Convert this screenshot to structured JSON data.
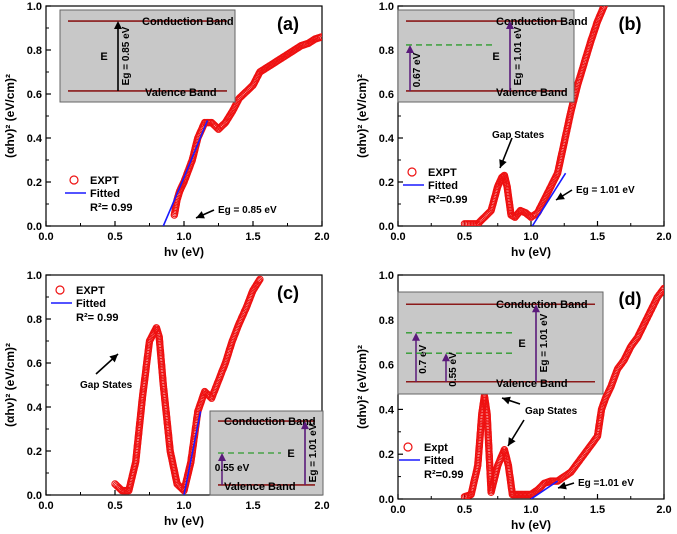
{
  "chart_data": [
    {
      "type": "scatter",
      "panel_label": "(a)",
      "xlabel": "hν (eV)",
      "ylabel": "(αhν)² (eV/cm)²",
      "xlim": [
        0.0,
        2.0
      ],
      "ylim": [
        0.0,
        1.0
      ],
      "xticks": [
        "0.0",
        "0.5",
        "1.0",
        "1.5",
        "2.0"
      ],
      "yticks": [
        "0.0",
        "0.2",
        "0.4",
        "0.6",
        "0.8",
        "1.0"
      ],
      "series": [
        {
          "name": "EXPT",
          "style": "open-circle",
          "color": "#ee1111",
          "x": [
            0.93,
            0.95,
            0.97,
            1.0,
            1.03,
            1.06,
            1.1,
            1.15,
            1.2,
            1.25,
            1.3,
            1.35,
            1.4,
            1.45,
            1.5,
            1.55,
            1.6,
            1.65,
            1.7,
            1.75,
            1.8,
            1.85,
            1.9,
            1.95,
            2.0
          ],
          "y": [
            0.05,
            0.12,
            0.16,
            0.2,
            0.25,
            0.3,
            0.4,
            0.47,
            0.47,
            0.44,
            0.47,
            0.52,
            0.58,
            0.61,
            0.64,
            0.7,
            0.72,
            0.74,
            0.76,
            0.78,
            0.8,
            0.82,
            0.83,
            0.85,
            0.86
          ]
        },
        {
          "name": "Fitted",
          "style": "line",
          "color": "#1a1aff",
          "x": [
            0.85,
            1.0,
            1.17
          ],
          "y": [
            0.0,
            0.22,
            0.48
          ]
        }
      ],
      "legend": {
        "entries": [
          "EXPT",
          "Fitted"
        ],
        "r2": "R²= 0.99",
        "placement": "bottom-left"
      },
      "annotations": {
        "eg": "Eg = 0.85 eV"
      },
      "inset": {
        "conduction": "Conduction Band",
        "valence": "Valence Band",
        "e_label": "E",
        "eg_label": "Eg = 0.85 eV"
      }
    },
    {
      "type": "scatter",
      "panel_label": "(b)",
      "xlabel": "hν (eV)",
      "ylabel": "(αhν)² (eV/cm)²",
      "xlim": [
        0.0,
        2.0
      ],
      "ylim": [
        0.0,
        1.0
      ],
      "xticks": [
        "0.0",
        "0.5",
        "1.0",
        "1.5",
        "2.0"
      ],
      "yticks": [
        "0.0",
        "0.2",
        "0.4",
        "0.6",
        "0.8",
        "1.0"
      ],
      "series": [
        {
          "name": "EXPT",
          "style": "open-circle",
          "color": "#ee1111",
          "x": [
            0.5,
            0.6,
            0.7,
            0.75,
            0.78,
            0.8,
            0.82,
            0.85,
            0.88,
            0.92,
            0.96,
            1.0,
            1.05,
            1.1,
            1.15,
            1.2,
            1.25,
            1.3,
            1.35,
            1.4,
            1.45,
            1.5,
            1.55
          ],
          "y": [
            0.01,
            0.01,
            0.07,
            0.18,
            0.22,
            0.23,
            0.18,
            0.05,
            0.04,
            0.07,
            0.06,
            0.04,
            0.06,
            0.12,
            0.18,
            0.24,
            0.38,
            0.52,
            0.64,
            0.74,
            0.84,
            0.93,
            1.0
          ]
        },
        {
          "name": "Fitted",
          "style": "line",
          "color": "#1a1aff",
          "x": [
            1.01,
            1.26
          ],
          "y": [
            0.0,
            0.24
          ]
        }
      ],
      "legend": {
        "entries": [
          "EXPT",
          "Fitted"
        ],
        "r2": "R²=0.99",
        "placement": "bottom-left"
      },
      "annotations": {
        "gap": "Gap States",
        "eg": "Eg = 1.01 eV"
      },
      "inset": {
        "conduction": "Conduction Band",
        "valence": "Valence Band",
        "e_label": "E",
        "eg_label": "Eg = 1.01 eV",
        "level1": "0.67 eV"
      }
    },
    {
      "type": "scatter",
      "panel_label": "(c)",
      "xlabel": "hν (eV)",
      "ylabel": "(αhν)² (eV/cm)²",
      "xlim": [
        0.0,
        2.0
      ],
      "ylim": [
        0.0,
        1.0
      ],
      "xticks": [
        "0.0",
        "0.5",
        "1.0",
        "1.5",
        "2.0"
      ],
      "yticks": [
        "0.0",
        "0.2",
        "0.4",
        "0.6",
        "0.8",
        "1.0"
      ],
      "series": [
        {
          "name": "EXPT",
          "style": "open-circle",
          "color": "#ee1111",
          "x": [
            0.5,
            0.55,
            0.6,
            0.65,
            0.7,
            0.75,
            0.8,
            0.82,
            0.85,
            0.9,
            0.95,
            1.0,
            1.05,
            1.1,
            1.15,
            1.2,
            1.25,
            1.3,
            1.35,
            1.4,
            1.45,
            1.5,
            1.55
          ],
          "y": [
            0.05,
            0.02,
            0.02,
            0.15,
            0.45,
            0.7,
            0.76,
            0.72,
            0.5,
            0.2,
            0.05,
            0.02,
            0.15,
            0.38,
            0.47,
            0.44,
            0.52,
            0.6,
            0.7,
            0.78,
            0.85,
            0.93,
            0.98
          ]
        },
        {
          "name": "Fitted",
          "style": "line",
          "color": "#1a1aff",
          "x": [
            1.0,
            1.12
          ],
          "y": [
            0.0,
            0.38
          ]
        }
      ],
      "legend": {
        "entries": [
          "EXPT",
          "Fitted"
        ],
        "r2": "R²= 0.99",
        "placement": "top-left"
      },
      "annotations": {
        "gap": "Gap States"
      },
      "inset": {
        "conduction": "Conduction Band",
        "valence": "Valence Band",
        "e_label": "E",
        "eg_label": "Eg = 1.01 eV",
        "level1": "0.55 eV"
      }
    },
    {
      "type": "scatter",
      "panel_label": "(d)",
      "xlabel": "hν (eV)",
      "ylabel": "(αhν)² (eV/cm)²",
      "xlim": [
        0.0,
        2.0
      ],
      "ylim": [
        0.0,
        1.0
      ],
      "xticks": [
        "0.0",
        "0.5",
        "1.0",
        "1.5",
        "2.0"
      ],
      "yticks": [
        "0.0",
        "0.2",
        "0.4",
        "0.6",
        "0.8",
        "1.0"
      ],
      "series": [
        {
          "name": "Expt",
          "style": "open-circle",
          "color": "#ee1111",
          "x": [
            0.5,
            0.55,
            0.6,
            0.63,
            0.65,
            0.67,
            0.7,
            0.75,
            0.8,
            0.83,
            0.86,
            0.9,
            0.95,
            1.0,
            1.05,
            1.1,
            1.15,
            1.2,
            1.3,
            1.4,
            1.5,
            1.53,
            1.56,
            1.6,
            1.65,
            1.7,
            1.75,
            1.8,
            1.85,
            1.9,
            1.95,
            2.0
          ],
          "y": [
            0.01,
            0.02,
            0.15,
            0.38,
            0.46,
            0.38,
            0.03,
            0.15,
            0.22,
            0.15,
            0.02,
            0.02,
            0.02,
            0.02,
            0.04,
            0.07,
            0.08,
            0.08,
            0.12,
            0.2,
            0.28,
            0.4,
            0.45,
            0.5,
            0.58,
            0.62,
            0.68,
            0.72,
            0.78,
            0.84,
            0.9,
            0.94
          ]
        },
        {
          "name": "Fitted",
          "style": "line",
          "color": "#1a1aff",
          "x": [
            1.0,
            1.2
          ],
          "y": [
            0.0,
            0.08
          ]
        }
      ],
      "legend": {
        "entries": [
          "Expt",
          "Fitted"
        ],
        "r2": "R²=0.99",
        "placement": "bottom-left"
      },
      "annotations": {
        "gap": "Gap States",
        "eg": "Eg =1.01 eV"
      },
      "inset": {
        "conduction": "Conduction Band",
        "valence": "Valence Band",
        "e_label": "E",
        "eg_label": "Eg = 1.01 eV",
        "level1": "0.7 eV",
        "level2": "0.55 eV"
      }
    }
  ],
  "colors": {
    "points": "#ee1111",
    "fit": "#1a1aff",
    "inset_bg": "#c8c8c8",
    "band_line": "#8b1a1a",
    "gap_level": "#2e9b2e",
    "arrow": "#5a1a7a"
  }
}
